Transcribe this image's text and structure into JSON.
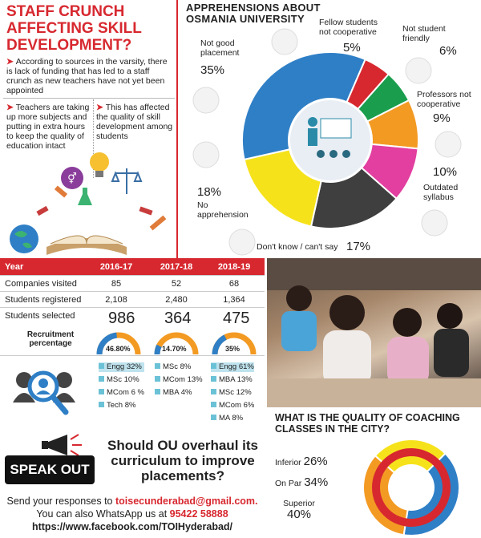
{
  "staff": {
    "title": "STAFF CRUNCH AFFECTING SKILL DEVELOPMENT?",
    "point1": "According to sources in the varsity, there is lack of funding that has led to a staff crunch as new teachers have not yet been appointed",
    "point2": "Teachers are taking up more subjects and putting in extra hours to keep the quality of education intact",
    "point3": "This has affected the quality of skill development among students"
  },
  "apprehensions": {
    "title": "APPREHENSIONS ABOUT OSMANIA UNIVERSITY",
    "items": [
      {
        "label": "Not good placement",
        "pct": "35%",
        "value": 35,
        "color": "#2f7fc6"
      },
      {
        "label": "Fellow students not cooperative",
        "pct": "5%",
        "value": 5,
        "color": "#d7282f"
      },
      {
        "label": "Not student friendly",
        "pct": "6%",
        "value": 6,
        "color": "#1a9e4e"
      },
      {
        "label": "Professors not cooperative",
        "pct": "9%",
        "value": 9,
        "color": "#f39a23"
      },
      {
        "label": "Outdated syllabus",
        "pct": "10%",
        "value": 10,
        "color": "#e23fa0"
      },
      {
        "label": "Don't know / can't say",
        "pct": "17%",
        "value": 17,
        "color": "#3f3f3f"
      },
      {
        "label": "No apprehension",
        "pct": "18%",
        "value": 18,
        "color": "#f6e21b"
      }
    ]
  },
  "table": {
    "headers": [
      "Year",
      "2016-17",
      "2017-18",
      "2018-19"
    ],
    "rows": [
      {
        "label": "Companies visited",
        "values": [
          "85",
          "52",
          "68"
        ]
      },
      {
        "label": "Students registered",
        "values": [
          "2,108",
          "2,480",
          "1,364"
        ]
      }
    ],
    "selected_label": "Students selected",
    "recruitment_label": "Recruitment percentage",
    "selected": [
      "986",
      "364",
      "475"
    ],
    "percent": [
      "46.80%",
      "14.70%",
      "35%"
    ],
    "percent_values": [
      46.8,
      14.7,
      35
    ],
    "lists": [
      [
        "Engg 32%",
        "MSc 10%",
        "MCom 6 %",
        "Tech 8%"
      ],
      [
        "MSc 8%",
        "MCom 13%",
        "MBA 4%"
      ],
      [
        "Engg 61%",
        "MBA 13%",
        "MSc 12%",
        "MCom 6%",
        "MA 8%"
      ]
    ]
  },
  "speak": {
    "badge": "SPEAK OUT",
    "question": "Should OU overhaul its curriculum to improve placements?",
    "send_prefix": "Send your responses to",
    "email": "toisecunderabad@gmail.com.",
    "whatsapp_prefix": "You can also WhatsApp us at",
    "phone": "95422 58888",
    "facebook": "https://www.facebook.com/TOIHyderabad/"
  },
  "coaching": {
    "title": "WHAT IS THE QUALITY OF COACHING CLASSES IN THE CITY?",
    "items": [
      {
        "label": "Inferior",
        "pct": "26%",
        "value": 26,
        "color": "#f6e21b"
      },
      {
        "label": "On Par",
        "pct": "34%",
        "value": 34,
        "color": "#f39a23"
      },
      {
        "label": "Superior",
        "pct": "40%",
        "value": 40,
        "color": "#2f7fc6"
      }
    ]
  }
}
